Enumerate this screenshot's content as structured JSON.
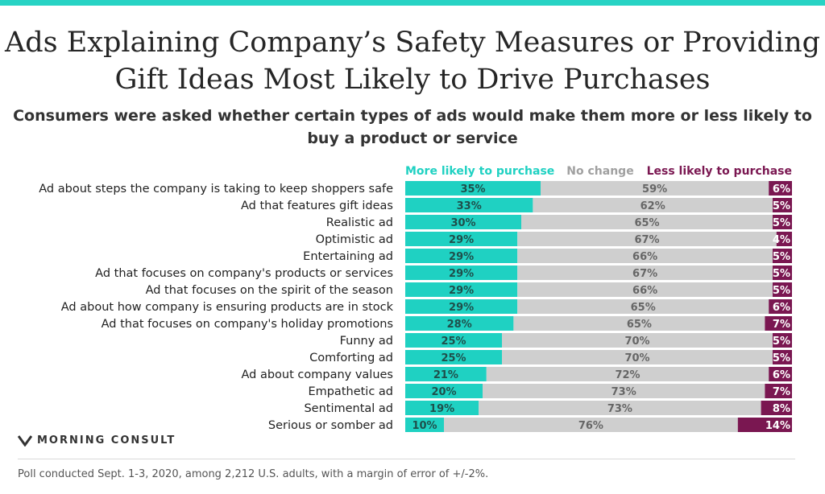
{
  "colors": {
    "more": "#1fd1c2",
    "none": "#cfcfcf",
    "less": "#7a1751",
    "accent": "#27d3c4"
  },
  "chart_data": {
    "type": "bar",
    "stacked": true,
    "orientation": "horizontal",
    "title": "Ads Explaining Company’s Safety Measures or Providing Gift Ideas Most Likely to Drive Purchases",
    "subtitle": "Consumers were asked whether certain types of ads would make them more or less likely to buy a product or service",
    "legend_position": "top-right",
    "xlim": [
      0,
      100
    ],
    "categories": [
      "Ad about steps the company is taking to keep shoppers safe",
      "Ad that features gift ideas",
      "Realistic ad",
      "Optimistic ad",
      "Entertaining ad",
      "Ad that focuses on company's products or services",
      "Ad that focuses on the spirit of the season",
      "Ad about how company is ensuring products are in stock",
      "Ad that focuses on company's holiday promotions",
      "Funny ad",
      "Comforting ad",
      "Ad about company values",
      "Empathetic ad",
      "Sentimental ad",
      "Serious or somber ad"
    ],
    "series": [
      {
        "name": "More likely to purchase",
        "color": "#1fd1c2",
        "text_color": "#1f4f4b",
        "values": [
          35,
          33,
          30,
          29,
          29,
          29,
          29,
          29,
          28,
          25,
          25,
          21,
          20,
          19,
          10
        ]
      },
      {
        "name": "No change",
        "color": "#cfcfcf",
        "text_color": "#666666",
        "values": [
          59,
          62,
          65,
          67,
          66,
          67,
          66,
          65,
          65,
          70,
          70,
          72,
          73,
          73,
          76
        ]
      },
      {
        "name": "Less likely to purchase",
        "color": "#7a1751",
        "text_color": "#ffffff",
        "values": [
          6,
          5,
          5,
          4,
          5,
          5,
          5,
          6,
          7,
          5,
          5,
          6,
          7,
          8,
          14
        ]
      }
    ]
  },
  "logo": {
    "text": "MORNING CONSULT"
  },
  "footnote": "Poll conducted Sept. 1-3, 2020, among 2,212 U.S. adults, with a margin of error of +/-2%."
}
